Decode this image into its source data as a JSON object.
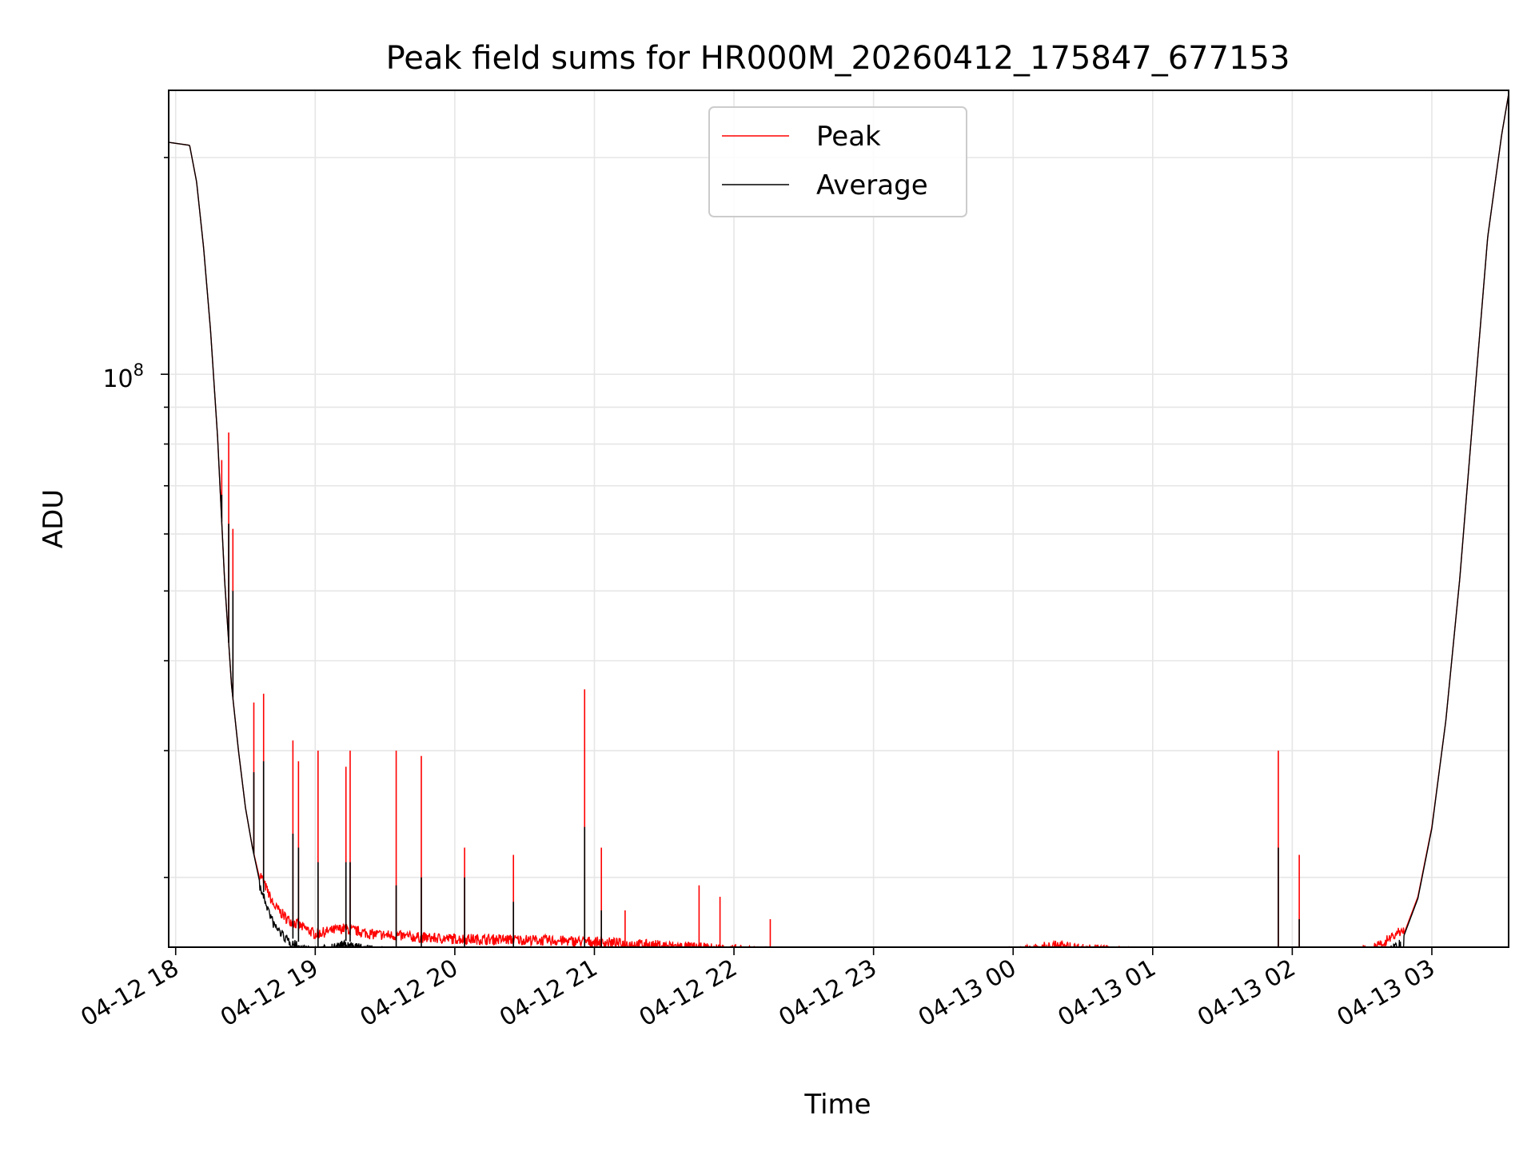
{
  "chart_data": {
    "type": "line",
    "title": "Peak field sums for HR000M_20260412_175847_677153",
    "xlabel": "Time",
    "ylabel": "ADU",
    "yscale": "log",
    "ylim": [
      16000000,
      248000000
    ],
    "xlim_hours": [
      -0.05,
      9.55
    ],
    "grid": true,
    "legend_position": "upper center",
    "x_tick_labels": [
      "04-12 18",
      "04-12 19",
      "04-12 20",
      "04-12 21",
      "04-12 22",
      "04-12 23",
      "04-13 00",
      "04-13 01",
      "04-13 02",
      "04-13 03"
    ],
    "x_ticks_hours": [
      0,
      1,
      2,
      3,
      4,
      5,
      6,
      7,
      8,
      9
    ],
    "y_major_tick_label": "10^8",
    "y_major_tick_base": "10",
    "y_major_tick_exp": "8",
    "y_major_tick_value": 100000000,
    "series": [
      {
        "name": "Peak",
        "color": "#ff0000",
        "x_hours": [
          -0.05,
          0.1,
          0.15,
          0.2,
          0.25,
          0.3,
          0.35,
          0.4,
          0.45,
          0.5,
          0.55,
          0.6,
          0.7,
          0.8,
          0.9,
          1.0,
          1.2,
          1.4,
          1.6,
          1.8,
          2.0,
          2.5,
          3.0,
          3.5,
          4.0,
          4.5,
          5.0,
          5.5,
          6.0,
          6.3,
          6.5,
          6.8,
          7.0,
          7.3,
          7.5,
          7.6,
          7.8,
          8.0,
          8.3,
          8.6,
          8.8,
          8.9,
          9.0,
          9.1,
          9.2,
          9.3,
          9.4,
          9.5,
          9.55
        ],
        "values": [
          210000000,
          208000000,
          185000000,
          150000000,
          115000000,
          82000000,
          52000000,
          37000000,
          30000000,
          25000000,
          22000000,
          20000000,
          18000000,
          17200000,
          16800000,
          16400000,
          16700000,
          16400000,
          16300000,
          16200000,
          16150000,
          16100000,
          16000000,
          15800000,
          15600000,
          15400000,
          15300000,
          15450000,
          15500000,
          15800000,
          15650000,
          15500000,
          15400000,
          15100000,
          14900000,
          15000000,
          15050000,
          15100000,
          15200000,
          15700000,
          16700000,
          18800000,
          23500000,
          33000000,
          52000000,
          90000000,
          155000000,
          215000000,
          245000000
        ]
      },
      {
        "name": "Average",
        "color": "#000000",
        "x_hours": [
          -0.05,
          0.1,
          0.15,
          0.2,
          0.25,
          0.3,
          0.35,
          0.4,
          0.45,
          0.5,
          0.55,
          0.6,
          0.7,
          0.8,
          0.9,
          1.0,
          1.2,
          1.4,
          1.6,
          1.8,
          2.0,
          2.5,
          3.0,
          3.5,
          4.0,
          4.5,
          5.0,
          5.5,
          6.0,
          6.3,
          6.5,
          6.8,
          7.0,
          7.3,
          7.5,
          7.6,
          7.8,
          8.0,
          8.3,
          8.6,
          8.8,
          8.9,
          9.0,
          9.1,
          9.2,
          9.3,
          9.4,
          9.5,
          9.55
        ],
        "values": [
          210000000,
          208000000,
          185000000,
          150000000,
          115000000,
          82000000,
          52000000,
          37000000,
          30000000,
          25000000,
          22000000,
          19800000,
          17500000,
          16600000,
          16200000,
          16000000,
          16350000,
          16100000,
          16000000,
          15900000,
          15800000,
          15700000,
          15550000,
          15300000,
          15100000,
          14950000,
          14900000,
          15250000,
          15450000,
          15750000,
          15600000,
          15450000,
          15350000,
          15050000,
          14800000,
          14900000,
          14950000,
          15000000,
          15100000,
          15600000,
          16600000,
          18700000,
          23400000,
          33000000,
          52000000,
          90000000,
          155000000,
          215000000,
          245000000
        ]
      }
    ],
    "spikes": [
      {
        "x_hours": 0.33,
        "peak": 76000000,
        "average": 68000000
      },
      {
        "x_hours": 0.38,
        "peak": 83000000,
        "average": 62000000
      },
      {
        "x_hours": 0.41,
        "peak": 61000000,
        "average": 50000000
      },
      {
        "x_hours": 0.56,
        "peak": 35000000,
        "average": 28000000
      },
      {
        "x_hours": 0.63,
        "peak": 36000000,
        "average": 29000000
      },
      {
        "x_hours": 0.84,
        "peak": 31000000,
        "average": 23000000
      },
      {
        "x_hours": 0.88,
        "peak": 29000000,
        "average": 22000000
      },
      {
        "x_hours": 1.02,
        "peak": 30000000,
        "average": 21000000
      },
      {
        "x_hours": 1.22,
        "peak": 28500000,
        "average": 21000000
      },
      {
        "x_hours": 1.25,
        "peak": 30000000,
        "average": 21000000
      },
      {
        "x_hours": 1.58,
        "peak": 30000000,
        "average": 19500000
      },
      {
        "x_hours": 1.76,
        "peak": 29500000,
        "average": 20000000
      },
      {
        "x_hours": 2.07,
        "peak": 22000000,
        "average": 20000000
      },
      {
        "x_hours": 2.42,
        "peak": 21500000,
        "average": 18500000
      },
      {
        "x_hours": 2.93,
        "peak": 36500000,
        "average": 23500000
      },
      {
        "x_hours": 3.05,
        "peak": 22000000,
        "average": 18000000
      },
      {
        "x_hours": 3.22,
        "peak": 18000000,
        "average": 16000000
      },
      {
        "x_hours": 3.75,
        "peak": 19500000,
        "average": 15500000
      },
      {
        "x_hours": 3.9,
        "peak": 18800000,
        "average": 16000000
      },
      {
        "x_hours": 4.26,
        "peak": 17500000,
        "average": 15300000
      },
      {
        "x_hours": 7.9,
        "peak": 30000000,
        "average": 22000000
      },
      {
        "x_hours": 8.05,
        "peak": 21500000,
        "average": 17500000
      }
    ]
  }
}
